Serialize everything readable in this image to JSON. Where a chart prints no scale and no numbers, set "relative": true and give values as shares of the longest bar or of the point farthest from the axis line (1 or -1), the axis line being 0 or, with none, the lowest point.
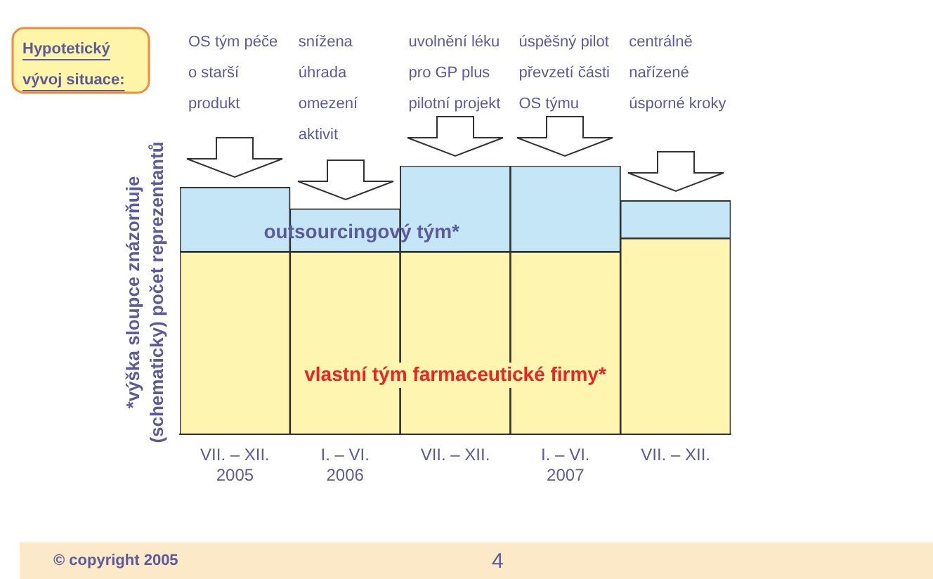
{
  "chart_data": {
    "type": "bar",
    "stacked": true,
    "relative": true,
    "ylabel": "*výška sloupce znázorňuje (schematicky) počet reprezentantů",
    "categories": [
      "VII. – XII. 2005",
      "I. – VI. 2006",
      "VII. – XII.",
      "I. – VI. 2007",
      "VII. – XII."
    ],
    "series": [
      {
        "name": "vlastní tým farmaceutické firmy*",
        "color": "#fdf5b0",
        "values": [
          0.68,
          0.68,
          0.68,
          0.68,
          0.73
        ]
      },
      {
        "name": "outsourcingový tým*",
        "color": "#c5e6f7",
        "values": [
          0.24,
          0.16,
          0.32,
          0.32,
          0.14
        ]
      }
    ],
    "annotations": [
      "Hypotetický vývoj situace:",
      "OS tým péče o starší produkt",
      "snížena úhrada omezení aktivit",
      "uvolnění léku pro GP plus pilotní projekt",
      "úspěšný pilot převzetí části OS týmu",
      "centrálně nařízené úsporné kroky",
      "© copyright 2005",
      "4"
    ],
    "grid": false,
    "legend": false
  }
}
